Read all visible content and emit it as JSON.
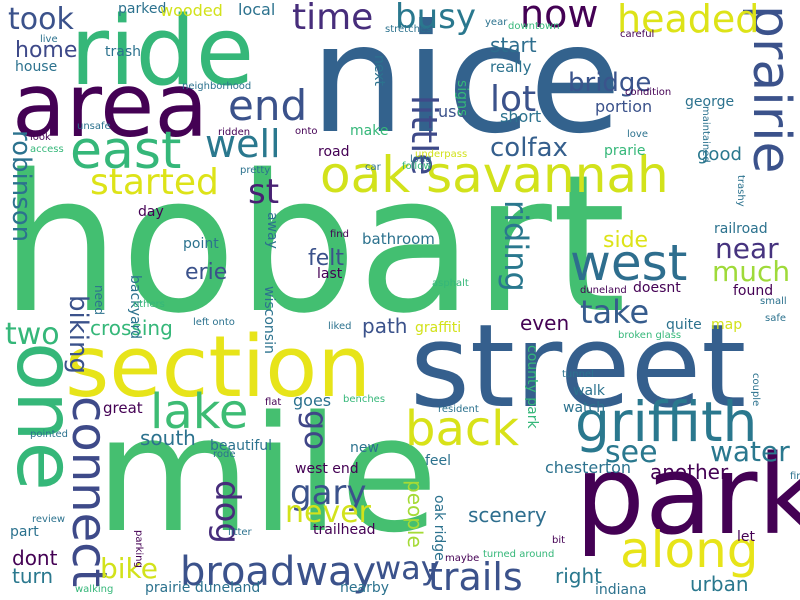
{
  "words": [
    {
      "text": "hobart",
      "color": "#43BF71"
    },
    {
      "text": "nice",
      "color": "#33628D"
    },
    {
      "text": "mile",
      "color": "#45BF70"
    },
    {
      "text": "street",
      "color": "#355F8D"
    },
    {
      "text": "park",
      "color": "#440154"
    },
    {
      "text": "section",
      "color": "#E7E419"
    },
    {
      "text": "ride",
      "color": "#35B779"
    },
    {
      "text": "area",
      "color": "#440154"
    },
    {
      "text": "one",
      "color": "#35B779"
    },
    {
      "text": "oak savannah",
      "color": "#D2E21B"
    },
    {
      "text": "griffith",
      "color": "#2A788E"
    },
    {
      "text": "along",
      "color": "#E7E419"
    },
    {
      "text": "prairie",
      "color": "#3B528B"
    },
    {
      "text": "east",
      "color": "#35B779"
    },
    {
      "text": "back",
      "color": "#D8E219"
    },
    {
      "text": "lake",
      "color": "#3DBC74"
    },
    {
      "text": "connect",
      "color": "#3E4A89"
    },
    {
      "text": "west",
      "color": "#2E6E8E"
    },
    {
      "text": "broadway",
      "color": "#3B528B"
    },
    {
      "text": "trails",
      "color": "#3B528B"
    },
    {
      "text": "end",
      "color": "#3B528B"
    },
    {
      "text": "well",
      "color": "#2A788E"
    },
    {
      "text": "now",
      "color": "#440154"
    },
    {
      "text": "headed",
      "color": "#DDE318"
    },
    {
      "text": "busy",
      "color": "#2A788E"
    },
    {
      "text": "time",
      "color": "#472D7B"
    },
    {
      "text": "started",
      "color": "#DDE318"
    },
    {
      "text": "st",
      "color": "#482173"
    },
    {
      "text": "took",
      "color": "#3B528B"
    },
    {
      "text": "home",
      "color": "#3E4989"
    },
    {
      "text": "house",
      "color": "#2C728E"
    },
    {
      "text": "lot",
      "color": "#3B528B"
    },
    {
      "text": "little",
      "color": "#3E4A89"
    },
    {
      "text": "bridge",
      "color": "#3A548C"
    },
    {
      "text": "start",
      "color": "#2E6E8E"
    },
    {
      "text": "colfax",
      "color": "#355F8D"
    },
    {
      "text": "riding",
      "color": "#2A788E"
    },
    {
      "text": "take",
      "color": "#365C8D"
    },
    {
      "text": "near",
      "color": "#46337F"
    },
    {
      "text": "much",
      "color": "#9FDA3A"
    },
    {
      "text": "gary",
      "color": "#3B528B"
    },
    {
      "text": "go",
      "color": "#404688"
    },
    {
      "text": "dog",
      "color": "#472D7B"
    },
    {
      "text": "never",
      "color": "#D2E21B"
    },
    {
      "text": "see",
      "color": "#2A788E"
    },
    {
      "text": "water",
      "color": "#2A788E"
    },
    {
      "text": "way",
      "color": "#3B528B"
    },
    {
      "text": "bike",
      "color": "#D2E21B"
    },
    {
      "text": "robinson",
      "color": "#2C728E"
    },
    {
      "text": "biking",
      "color": "#3B528B"
    },
    {
      "text": "two",
      "color": "#35B779"
    },
    {
      "text": "crossing",
      "color": "#35B779"
    },
    {
      "text": "erie",
      "color": "#3B528B"
    },
    {
      "text": "felt",
      "color": "#3B528B"
    },
    {
      "text": "south",
      "color": "#2C728E"
    },
    {
      "text": "path",
      "color": "#3B528B"
    },
    {
      "text": "even",
      "color": "#440154"
    },
    {
      "text": "side",
      "color": "#DDE318"
    },
    {
      "text": "scenery",
      "color": "#2E6E8E"
    },
    {
      "text": "people",
      "color": "#A5DB36"
    },
    {
      "text": "another",
      "color": "#440154"
    },
    {
      "text": "right",
      "color": "#2A788E"
    },
    {
      "text": "urban",
      "color": "#2A788E"
    },
    {
      "text": "turn",
      "color": "#2A788E"
    },
    {
      "text": "dont",
      "color": "#440154"
    },
    {
      "text": "good",
      "color": "#2A788E"
    },
    {
      "text": "use",
      "color": "#3B528B"
    },
    {
      "text": "short",
      "color": "#2C728E"
    },
    {
      "text": "really",
      "color": "#2C728E"
    },
    {
      "text": "portion",
      "color": "#3B528B"
    },
    {
      "text": "george",
      "color": "#2C728E"
    },
    {
      "text": "parked",
      "color": "#2C728E"
    },
    {
      "text": "wooded",
      "color": "#D2E21B"
    },
    {
      "text": "local",
      "color": "#2C728E"
    },
    {
      "text": "trash",
      "color": "#2C728E"
    },
    {
      "text": "next",
      "color": "#2C728E"
    },
    {
      "text": "signs",
      "color": "#35B779"
    },
    {
      "text": "make",
      "color": "#35B779"
    },
    {
      "text": "road",
      "color": "#440154"
    },
    {
      "text": "prarie",
      "color": "#35B779"
    },
    {
      "text": "day",
      "color": "#440154"
    },
    {
      "text": "point",
      "color": "#2C728E"
    },
    {
      "text": "away",
      "color": "#2C728E"
    },
    {
      "text": "bathroom",
      "color": "#2C728E"
    },
    {
      "text": "railroad",
      "color": "#2C728E"
    },
    {
      "text": "last",
      "color": "#440154"
    },
    {
      "text": "found",
      "color": "#440154"
    },
    {
      "text": "doesnt",
      "color": "#440154"
    },
    {
      "text": "map",
      "color": "#D2E21B"
    },
    {
      "text": "quite",
      "color": "#2C728E"
    },
    {
      "text": "wisconsin",
      "color": "#2C728E"
    },
    {
      "text": "graffiti",
      "color": "#D2E21B"
    },
    {
      "text": "great",
      "color": "#440154"
    },
    {
      "text": "goes",
      "color": "#2C728E"
    },
    {
      "text": "beautiful",
      "color": "#2C728E"
    },
    {
      "text": "new",
      "color": "#2C728E"
    },
    {
      "text": "west end",
      "color": "#440154"
    },
    {
      "text": "feel",
      "color": "#2C728E"
    },
    {
      "text": "chesterton",
      "color": "#2C728E"
    },
    {
      "text": "watch",
      "color": "#2C728E"
    },
    {
      "text": "walk",
      "color": "#2C728E"
    },
    {
      "text": "trailhead",
      "color": "#440154"
    },
    {
      "text": "part",
      "color": "#2C728E"
    },
    {
      "text": "let",
      "color": "#440154"
    },
    {
      "text": "indiana",
      "color": "#2C728E"
    },
    {
      "text": "nearby",
      "color": "#2C728E"
    },
    {
      "text": "prairie duneland",
      "color": "#2C728E"
    },
    {
      "text": "county park",
      "color": "#35B779"
    },
    {
      "text": "oak ridge",
      "color": "#2C728E"
    },
    {
      "text": "backyard",
      "color": "#2C728E"
    },
    {
      "text": "need",
      "color": "#2C728E"
    },
    {
      "text": "neighborhood",
      "color": "#2C728E"
    },
    {
      "text": "live",
      "color": "#2C728E"
    },
    {
      "text": "year",
      "color": "#2C728E"
    },
    {
      "text": "downtown",
      "color": "#35B779"
    },
    {
      "text": "stretches",
      "color": "#2C728E"
    },
    {
      "text": "careful",
      "color": "#440154"
    },
    {
      "text": "condition",
      "color": "#440154"
    },
    {
      "text": "love",
      "color": "#2C728E"
    },
    {
      "text": "maintained",
      "color": "#2C728E"
    },
    {
      "text": "underpass",
      "color": "#D2E21B"
    },
    {
      "text": "follow",
      "color": "#35B779"
    },
    {
      "text": "long",
      "color": "#2C728E"
    },
    {
      "text": "car",
      "color": "#2C728E"
    },
    {
      "text": "find",
      "color": "#440154"
    },
    {
      "text": "pretty",
      "color": "#2C728E"
    },
    {
      "text": "trashy",
      "color": "#2C728E"
    },
    {
      "text": "small",
      "color": "#2C728E"
    },
    {
      "text": "safe",
      "color": "#2C728E"
    },
    {
      "text": "duneland",
      "color": "#440154"
    },
    {
      "text": "asphalt",
      "color": "#35B779"
    },
    {
      "text": "broken glass",
      "color": "#35B779"
    },
    {
      "text": "liked",
      "color": "#2C728E"
    },
    {
      "text": "left onto",
      "color": "#2C728E"
    },
    {
      "text": "others",
      "color": "#35B779"
    },
    {
      "text": "tunnel",
      "color": "#2C728E"
    },
    {
      "text": "couple",
      "color": "#2C728E"
    },
    {
      "text": "first",
      "color": "#2C728E"
    },
    {
      "text": "resident",
      "color": "#2C728E"
    },
    {
      "text": "flat",
      "color": "#440154"
    },
    {
      "text": "benches",
      "color": "#35B779"
    },
    {
      "text": "rode",
      "color": "#2C728E"
    },
    {
      "text": "pointed",
      "color": "#2C728E"
    },
    {
      "text": "review",
      "color": "#2C728E"
    },
    {
      "text": "parking",
      "color": "#440154"
    },
    {
      "text": "litter",
      "color": "#2C728E"
    },
    {
      "text": "turned around",
      "color": "#35B779"
    },
    {
      "text": "bit",
      "color": "#440154"
    },
    {
      "text": "maybe",
      "color": "#440154"
    },
    {
      "text": "walking",
      "color": "#35B779"
    },
    {
      "text": "unsafe",
      "color": "#2C728E"
    },
    {
      "text": "ridden",
      "color": "#440154"
    },
    {
      "text": "onto",
      "color": "#440154"
    },
    {
      "text": "look",
      "color": "#440154"
    },
    {
      "text": "access",
      "color": "#35B779"
    }
  ]
}
